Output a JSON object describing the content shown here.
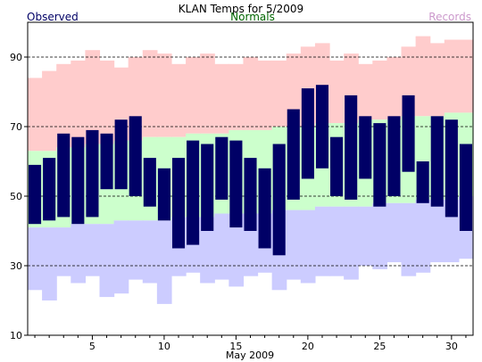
{
  "header": {
    "title": "KLAN Temps for 5/2009",
    "legend_observed": "Observed",
    "legend_normals": "Normals",
    "legend_records": "Records"
  },
  "colors": {
    "observed": "#000066",
    "normals": "#ccffcc",
    "records_high": "#ffcccc",
    "records_low": "#ccccff",
    "legend_observed": "#000066",
    "legend_normals": "#006600",
    "legend_records": "#cc99cc"
  },
  "chart_data": {
    "type": "bar",
    "title": "KLAN Temps for 5/2009",
    "xlabel": "May 2009",
    "ylabel": "",
    "days": [
      1,
      2,
      3,
      4,
      5,
      6,
      7,
      8,
      9,
      10,
      11,
      12,
      13,
      14,
      15,
      16,
      17,
      18,
      19,
      20,
      21,
      22,
      23,
      24,
      25,
      26,
      27,
      28,
      29,
      30,
      31
    ],
    "xticks": [
      5,
      10,
      15,
      20,
      25,
      30
    ],
    "yticks": [
      10,
      30,
      50,
      70,
      90
    ],
    "ylim": [
      10,
      100
    ],
    "grid": true,
    "series": [
      {
        "name": "Observed",
        "high": [
          59,
          61,
          68,
          67,
          69,
          68,
          72,
          73,
          61,
          58,
          61,
          66,
          65,
          67,
          66,
          61,
          58,
          65,
          75,
          81,
          82,
          67,
          79,
          73,
          71,
          73,
          79,
          60,
          73,
          72,
          65
        ],
        "low": [
          42,
          43,
          44,
          42,
          44,
          52,
          52,
          50,
          47,
          43,
          35,
          36,
          40,
          49,
          41,
          40,
          35,
          33,
          49,
          55,
          58,
          50,
          49,
          55,
          47,
          50,
          57,
          48,
          47,
          44,
          40
        ]
      },
      {
        "name": "Normals",
        "high": [
          63,
          63,
          64,
          64,
          65,
          65,
          66,
          66,
          67,
          67,
          67,
          68,
          68,
          68,
          69,
          69,
          69,
          70,
          70,
          70,
          71,
          71,
          71,
          72,
          72,
          72,
          73,
          73,
          73,
          74,
          74
        ],
        "low": [
          41,
          41,
          41,
          42,
          42,
          42,
          43,
          43,
          43,
          43,
          44,
          44,
          44,
          45,
          45,
          45,
          45,
          46,
          46,
          46,
          47,
          47,
          47,
          47,
          48,
          48,
          48,
          49,
          49,
          49,
          50
        ]
      },
      {
        "name": "Records",
        "high": [
          84,
          86,
          88,
          89,
          92,
          89,
          87,
          90,
          92,
          91,
          88,
          90,
          91,
          88,
          88,
          90,
          89,
          89,
          91,
          93,
          94,
          89,
          91,
          88,
          89,
          90,
          93,
          96,
          94,
          95,
          95
        ],
        "low": [
          23,
          20,
          27,
          25,
          27,
          21,
          22,
          26,
          25,
          19,
          27,
          28,
          25,
          26,
          24,
          27,
          28,
          23,
          26,
          25,
          27,
          27,
          26,
          30,
          29,
          31,
          27,
          28,
          31,
          31,
          32
        ]
      }
    ]
  }
}
